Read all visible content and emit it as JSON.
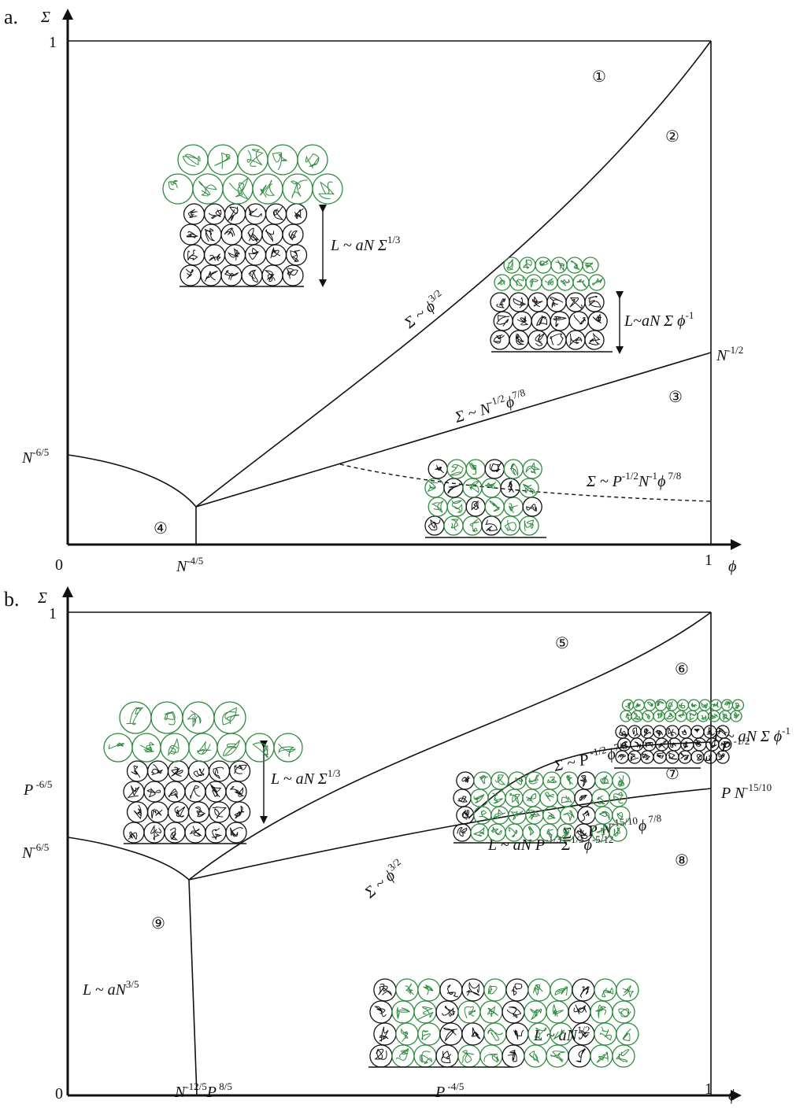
{
  "panel_a": {
    "label": "a.",
    "y_axis": "Σ",
    "x_axis": "ϕ",
    "y_top": "1",
    "x_right": "1",
    "origin": "0",
    "y_mark": "N",
    "y_mark_exp": "-6/5",
    "x_mark": "N",
    "x_mark_exp": "-4/5",
    "right_mark": "N",
    "right_mark_exp": "-1/2",
    "regions": [
      "①",
      "②",
      "③",
      "④"
    ],
    "curve_steep": {
      "base": "Σ ~ ϕ",
      "exp": "3/2"
    },
    "curve_mid": {
      "base": "Σ ~ N",
      "exp1": "-1/2",
      "mid": "ϕ",
      "exp2": "7/8"
    },
    "curve_dashed": {
      "a": "Σ ~ P",
      "e1": "-1/2",
      "b": "N",
      "e2": "-1",
      "c": "ϕ",
      "e3": " 7/8"
    },
    "height_1": {
      "base": "L ~ aN Σ",
      "exp": "1/3"
    },
    "height_2": {
      "base": "L~aN Σ ϕ",
      "exp": "-1"
    }
  },
  "panel_b": {
    "label": "b.",
    "y_axis": "Σ",
    "x_axis": "ϕ",
    "y_top": "1",
    "x_right": "1",
    "origin": "0",
    "y_mark_1": "P",
    "y_mark_1_exp": " -6/5",
    "y_mark_2": "N",
    "y_mark_2_exp": "-6/5",
    "x_mark_1": {
      "a": "N",
      "e1": "-12/5",
      "b": "P",
      "e2": " 8/5"
    },
    "x_mark_2": {
      "a": "P",
      "e1": " -4/5"
    },
    "right_mark_1": {
      "a": "P",
      "e1": " -1/2"
    },
    "right_mark_2": {
      "a": "P N",
      "e1": "-15/10"
    },
    "regions": [
      "⑤",
      "⑥",
      "⑦",
      "⑧",
      "⑨"
    ],
    "curve_steep": {
      "base": "Σ ~ ϕ",
      "exp": "3/2"
    },
    "curve_upper": {
      "a": "Σ ~ P",
      "e1": " -1/2",
      "b": "ϕ",
      "e2": "7/8"
    },
    "curve_lower": {
      "a": "Σ ~ P N",
      "e1": "-15/10",
      "b": "ϕ",
      "e2": " 7/8"
    },
    "height_1": {
      "base": "L ~ aN Σ",
      "exp": "1/3"
    },
    "height_2": {
      "base": "L ~ aN Σ ϕ",
      "exp": "-1"
    },
    "height_3": {
      "a": "L ~ aN P",
      "e1": "-1/3",
      "b": "Σ",
      "e2": "1/3",
      "c": "ϕ",
      "e3": "-5/12"
    },
    "height_4": {
      "base": "L ~ aN",
      "exp": "1/2"
    },
    "height_5": {
      "base": "L ~ aN",
      "exp": "3/5"
    }
  },
  "colors": {
    "axis": "#111111",
    "green": "#2e8b3e",
    "black": "#111111"
  }
}
